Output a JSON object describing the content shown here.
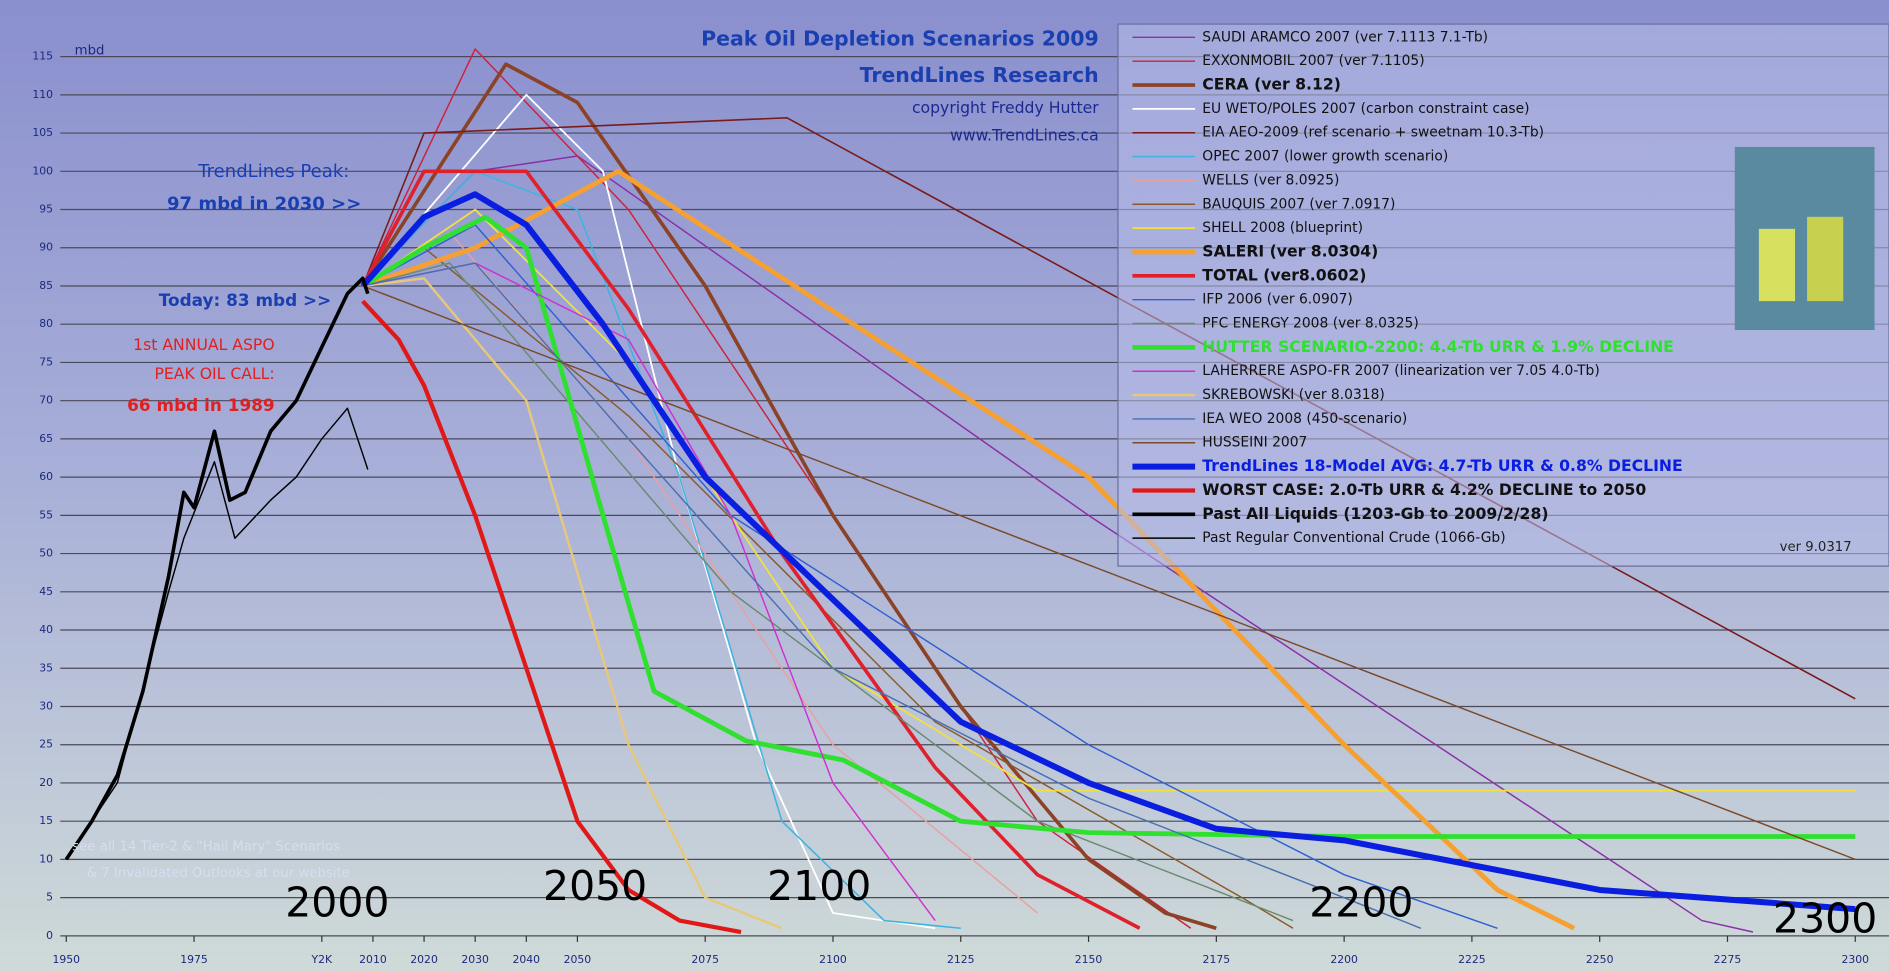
{
  "chart_data": {
    "type": "line",
    "title": "Peak Oil Depletion Scenarios 2009",
    "subtitle": "TrendLines Research",
    "y_label": "mbd",
    "annotations": [
      "copyright Freddy Hutter",
      "www.TrendLines.ca",
      "TrendLines Peak:",
      "97 mbd in 2030 >>",
      "Today: 83 mbd >>",
      "1st ANNUAL ASPO",
      "PEAK OIL CALL:",
      "66 mbd in 1989",
      "see all 14 Tier-2 & \"Hail Mary\" Scenarios",
      "& 7 Invalidated Outlooks at our website",
      "2000",
      "2050",
      "2100",
      "2200",
      "2300"
    ],
    "legend_note": "ver 9.0317",
    "xlim": [
      1950,
      2300
    ],
    "ylim": [
      0,
      115
    ],
    "xticks": [
      1950,
      1975,
      {
        "value": 2000,
        "label": "Y2K"
      },
      2010,
      2020,
      2030,
      2040,
      2050,
      2075,
      2100,
      2125,
      2150,
      2175,
      2200,
      2225,
      2250,
      2275,
      2300
    ],
    "yticks": [
      0,
      5,
      10,
      15,
      20,
      25,
      30,
      35,
      40,
      45,
      50,
      55,
      60,
      65,
      70,
      75,
      80,
      85,
      90,
      95,
      100,
      105,
      110,
      115
    ],
    "grid": true,
    "legend": "upper right",
    "series": [
      {
        "name": "SAUDI ARAMCO 2007 (ver 7.1113  7.1-Tb)",
        "color": "#8b2fa8",
        "width": 1.2,
        "x": [
          2008,
          2030,
          2050,
          2150,
          2270,
          2280
        ],
        "values": [
          85,
          100,
          102,
          55,
          2,
          0.5
        ]
      },
      {
        "name": "EXXONMOBIL 2007 (ver 7.1105)",
        "color": "#d0203a",
        "width": 1.2,
        "x": [
          2008,
          2030,
          2060,
          2100,
          2140,
          2170
        ],
        "values": [
          85,
          116,
          95,
          55,
          15,
          1
        ]
      },
      {
        "name": "CERA (ver 8.12)",
        "color": "#8b4226",
        "width": 3,
        "x": [
          2008,
          2036,
          2050,
          2075,
          2100,
          2125,
          2150,
          2165,
          2175
        ],
        "values": [
          85,
          114,
          109,
          85,
          55,
          30,
          10,
          3,
          1
        ]
      },
      {
        "name": "EU WETO/POLES 2007 (carbon constraint case)",
        "color": "#ffffff",
        "width": 1.5,
        "x": [
          2008,
          2040,
          2055,
          2070,
          2085,
          2100,
          2120
        ],
        "values": [
          85,
          110,
          100,
          60,
          25,
          3,
          1
        ]
      },
      {
        "name": "EIA AEO-2009 (ref scenario + sweetnam  10.3-Tb)",
        "color": "#7a1a1a",
        "width": 1.3,
        "x": [
          2008,
          2020,
          2091,
          2300
        ],
        "values": [
          85,
          105,
          107,
          31
        ]
      },
      {
        "name": "OPEC 2007 (lower growth scenario)",
        "color": "#3fb4e0",
        "width": 1.3,
        "x": [
          2008,
          2030,
          2050,
          2070,
          2090,
          2110,
          2125
        ],
        "values": [
          85,
          100,
          95,
          60,
          15,
          2,
          1
        ]
      },
      {
        "name": "WELLS (ver 8.0925)",
        "color": "#e8a0a0",
        "width": 1.2,
        "x": [
          2008,
          2025,
          2060,
          2100,
          2140
        ],
        "values": [
          85,
          92,
          65,
          25,
          3
        ]
      },
      {
        "name": "BAUQUIS 2007 (ver 7.0917)",
        "color": "#8a5a2a",
        "width": 1.2,
        "x": [
          2008,
          2020,
          2060,
          2120,
          2180,
          2190
        ],
        "values": [
          85,
          90,
          68,
          28,
          5,
          1
        ]
      },
      {
        "name": "SHELL 2008 (blueprint)",
        "color": "#f0e040",
        "width": 1.5,
        "x": [
          2008,
          2030,
          2060,
          2100,
          2140,
          2300
        ],
        "values": [
          85,
          95,
          75,
          35,
          19,
          19
        ]
      },
      {
        "name": "SALERI  (ver 8.0304)",
        "color": "#f5a030",
        "width": 4,
        "x": [
          2008,
          2030,
          2058,
          2150,
          2200,
          2230,
          2245
        ],
        "values": [
          85,
          90,
          100,
          60,
          25,
          6,
          1
        ]
      },
      {
        "name": "TOTAL (ver8.0602)",
        "color": "#e0202a",
        "width": 3,
        "x": [
          2008,
          2020,
          2040,
          2060,
          2090,
          2120,
          2140,
          2160
        ],
        "values": [
          85,
          100,
          100,
          82,
          50,
          22,
          8,
          1
        ]
      },
      {
        "name": "IFP 2006 (ver 6.0907)",
        "color": "#3060d0",
        "width": 1.2,
        "x": [
          2008,
          2030,
          2080,
          2150,
          2200,
          2230
        ],
        "values": [
          85,
          93,
          55,
          25,
          8,
          1
        ]
      },
      {
        "name": "PFC ENERGY 2008 (ver 8.0325)",
        "color": "#6a8a70",
        "width": 1.2,
        "x": [
          2008,
          2025,
          2080,
          2140,
          2190
        ],
        "values": [
          85,
          88,
          45,
          15,
          2
        ]
      },
      {
        "name": "HUTTER SCENARIO-2200:  4.4-Tb URR & 1.9% DECLINE",
        "color": "#30e030",
        "width": 4,
        "x": [
          2008,
          2020,
          2032,
          2040,
          2055,
          2065,
          2083,
          2102,
          2125,
          2150,
          2200,
          2300
        ],
        "values": [
          85,
          90,
          94,
          90,
          55,
          32,
          25.5,
          23,
          15,
          13.5,
          13,
          13
        ]
      },
      {
        "name": "LAHERRERE ASPO-FR 2007 (linearization ver 7.05  4.0-Tb)",
        "color": "#d030d0",
        "width": 1.2,
        "x": [
          2008,
          2030,
          2060,
          2080,
          2100,
          2120
        ],
        "values": [
          85,
          88,
          78,
          55,
          20,
          2
        ]
      },
      {
        "name": "SKREBOWSKI (ver 8.0318)",
        "color": "#e8c878",
        "width": 2,
        "x": [
          2008,
          2020,
          2040,
          2060,
          2075,
          2090
        ],
        "values": [
          85,
          86,
          70,
          25,
          5,
          1
        ]
      },
      {
        "name": "IEA WEO 2008 (450-scenario)",
        "color": "#4a70b0",
        "width": 1.2,
        "x": [
          2008,
          2030,
          2060,
          2100,
          2150,
          2200,
          2215
        ],
        "values": [
          85,
          88,
          65,
          35,
          18,
          5,
          1
        ]
      },
      {
        "name": "HUSSEINI 2007",
        "color": "#7a4a2a",
        "width": 1.2,
        "x": [
          2008,
          2300
        ],
        "values": [
          85,
          10
        ]
      },
      {
        "name": "TrendLines 18-Model AVG:  4.7-Tb URR & 0.8% DECLINE",
        "color": "#0a1ee0",
        "width": 5,
        "x": [
          2008,
          2020,
          2030,
          2040,
          2055,
          2075,
          2100,
          2125,
          2150,
          2175,
          2200,
          2250,
          2300
        ],
        "values": [
          85,
          94,
          97,
          93,
          80,
          60,
          44,
          28,
          20,
          14,
          12.5,
          6,
          3.5
        ]
      },
      {
        "name": "WORST CASE:  2.0-Tb URR & 4.2% DECLINE to 2050",
        "color": "#e01818",
        "width": 3.5,
        "x": [
          2008,
          2015,
          2020,
          2030,
          2040,
          2050,
          2060,
          2070,
          2082
        ],
        "values": [
          83,
          78,
          72,
          55,
          35,
          15,
          6,
          2,
          0.5
        ]
      },
      {
        "name": "Past All Liquids  (1203-Gb to 2009/2/28)",
        "color": "#000000",
        "width": 3,
        "x": [
          1950,
          1955,
          1960,
          1965,
          1970,
          1973,
          1975,
          1979,
          1982,
          1985,
          1990,
          1995,
          2000,
          2005,
          2008,
          2009
        ],
        "values": [
          10,
          15,
          21,
          32,
          47,
          58,
          56,
          66,
          57,
          58,
          66,
          70,
          77,
          84,
          86,
          84
        ]
      },
      {
        "name": "Past Regular Conventional Crude  (1066-Gb)",
        "color": "#000000",
        "width": 1.2,
        "x": [
          1950,
          1960,
          1970,
          1973,
          1979,
          1983,
          1990,
          1995,
          2000,
          2005,
          2008,
          2009
        ],
        "values": [
          10,
          20,
          45,
          52,
          62,
          52,
          57,
          60,
          65,
          69,
          63,
          61
        ]
      }
    ]
  }
}
